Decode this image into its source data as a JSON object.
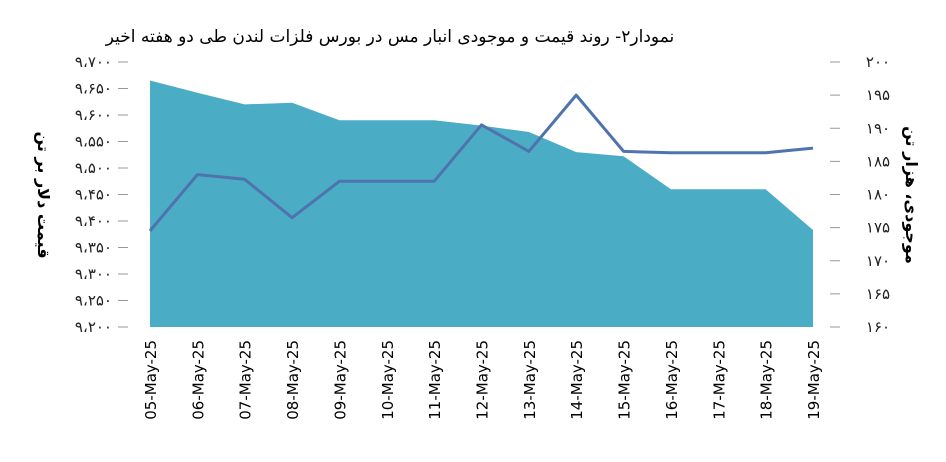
{
  "chart_data": {
    "type": "area+line",
    "title": "نمودار۲- روند قیمت و موجودی انبار مس در بورس فلزات لندن طی دو هفته اخیر",
    "ylabel_left": "قیمت دلار بر تن",
    "ylabel_right": "موجودی، هزار تن",
    "categories": [
      "05-May-25",
      "06-May-25",
      "07-May-25",
      "08-May-25",
      "09-May-25",
      "10-May-25",
      "11-May-25",
      "12-May-25",
      "13-May-25",
      "14-May-25",
      "15-May-25",
      "16-May-25",
      "17-May-25",
      "18-May-25",
      "19-May-25"
    ],
    "series": [
      {
        "kind": "area",
        "axis": "left",
        "color": "#4bacc6",
        "values": [
          9665,
          9642,
          9620,
          9623,
          9590,
          9590,
          9590,
          9580,
          9568,
          9530,
          9522,
          9460,
          9460,
          9460,
          9383
        ]
      },
      {
        "kind": "line",
        "axis": "right",
        "color": "#4f74ad",
        "values": [
          174.5,
          183.0,
          182.3,
          176.5,
          182.0,
          182.0,
          182.0,
          190.5,
          186.5,
          195.0,
          186.5,
          186.3,
          186.3,
          186.3,
          187.0
        ]
      }
    ],
    "left_axis": {
      "ylim": [
        9200,
        9700
      ],
      "ticks": [
        9200,
        9250,
        9300,
        9350,
        9400,
        9450,
        9500,
        9550,
        9600,
        9650,
        9700
      ],
      "tick_labels": [
        "۹،۲۰۰",
        "۹،۲۵۰",
        "۹،۳۰۰",
        "۹،۳۵۰",
        "۹،۴۰۰",
        "۹،۴۵۰",
        "۹،۵۰۰",
        "۹،۵۵۰",
        "۹،۶۰۰",
        "۹،۶۵۰",
        "۹،۷۰۰"
      ]
    },
    "right_axis": {
      "ylim": [
        160,
        200
      ],
      "ticks": [
        160,
        165,
        170,
        175,
        180,
        185,
        190,
        195,
        200
      ],
      "tick_labels": [
        "۱۶۰",
        "۱۶۵",
        "۱۷۰",
        "۱۷۵",
        "۱۸۰",
        "۱۸۵",
        "۱۹۰",
        "۱۹۵",
        "۲۰۰"
      ]
    },
    "grid": false,
    "legend": "none"
  }
}
